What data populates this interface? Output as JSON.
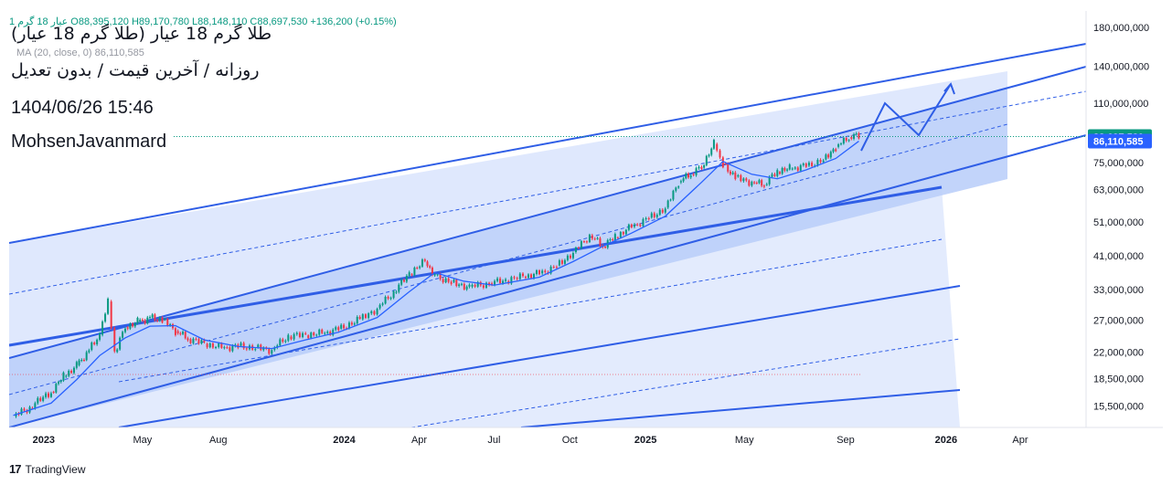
{
  "header": {
    "ohlc_text": "1  عیار 18 گرم   O88,395,120  H89,170,780  L88,148,110  C88,697,530  +136,200 (+0.15%)",
    "ma_text": "MA (20, close, 0)  86,110,585",
    "title_line1": "طلا گرم 18 عیار (طلا گرم 18 عیار)",
    "title_line2": "روزانه / آخرین قیمت / بدون تعدیل",
    "datetime": "1404/06/26 15:46",
    "author": "MohsenJavanmard"
  },
  "footer": {
    "brand": "TradingView",
    "logo": "17"
  },
  "colors": {
    "line": "#2f5ee6",
    "channel_fill": "#d7e2fc",
    "channel_fill_dark": "#a9c2f7",
    "up": "#089981",
    "down": "#f23645",
    "ma": "#2962ff",
    "last_price": "#089981",
    "ma_tag": "#2962ff"
  },
  "chart_data": {
    "type": "line",
    "title": "",
    "xlabel": "",
    "ylabel": "",
    "y_scale": "log",
    "ylim": [
      13500000,
      200000000
    ],
    "y_ticks": [
      "180,000,000",
      "140,000,000",
      "110,000,000",
      "75,000,000",
      "63,000,000",
      "51,000,000",
      "41,000,000",
      "33,000,000",
      "27,000,000",
      "22,000,000",
      "18,500,000",
      "15,500,000"
    ],
    "x_ticks": [
      {
        "label": "2023",
        "date": "2023-01-01",
        "bold": true
      },
      {
        "label": "May",
        "date": "2023-05-01",
        "bold": false
      },
      {
        "label": "Aug",
        "date": "2023-08-01",
        "bold": false
      },
      {
        "label": "2024",
        "date": "2024-01-01",
        "bold": true
      },
      {
        "label": "Apr",
        "date": "2024-04-01",
        "bold": false
      },
      {
        "label": "Jul",
        "date": "2024-07-01",
        "bold": false
      },
      {
        "label": "Oct",
        "date": "2024-10-01",
        "bold": false
      },
      {
        "label": "2025",
        "date": "2025-01-01",
        "bold": true
      },
      {
        "label": "May",
        "date": "2025-05-01",
        "bold": false
      },
      {
        "label": "Sep",
        "date": "2025-09-01",
        "bold": false
      },
      {
        "label": "2026",
        "date": "2026-01-01",
        "bold": true
      },
      {
        "label": "Apr",
        "date": "2026-04-01",
        "bold": false
      }
    ],
    "xlim": [
      "2022-11-20",
      "2026-06-20"
    ],
    "series": [
      {
        "name": "",
        "values": [
          [
            "2022-11-25",
            14500000
          ],
          [
            "2022-12-15",
            15300000
          ],
          [
            "2023-01-10",
            17000000
          ],
          [
            "2023-01-25",
            18800000
          ],
          [
            "2023-02-10",
            20200000
          ],
          [
            "2023-02-25",
            22300000
          ],
          [
            "2023-03-10",
            24600000
          ],
          [
            "2023-03-20",
            30500000
          ],
          [
            "2023-03-28",
            22000000
          ],
          [
            "2023-04-10",
            25800000
          ],
          [
            "2023-04-25",
            26800000
          ],
          [
            "2023-05-10",
            27500000
          ],
          [
            "2023-05-25",
            27200000
          ],
          [
            "2023-06-10",
            25200000
          ],
          [
            "2023-06-25",
            23900000
          ],
          [
            "2023-07-15",
            23200000
          ],
          [
            "2023-08-05",
            22600000
          ],
          [
            "2023-08-25",
            22900000
          ],
          [
            "2023-09-15",
            22700000
          ],
          [
            "2023-10-05",
            22300000
          ],
          [
            "2023-10-25",
            24300000
          ],
          [
            "2023-11-15",
            24500000
          ],
          [
            "2023-12-05",
            24800000
          ],
          [
            "2023-12-25",
            25600000
          ],
          [
            "2024-01-20",
            27200000
          ],
          [
            "2024-02-10",
            29200000
          ],
          [
            "2024-03-01",
            32300000
          ],
          [
            "2024-03-20",
            36400000
          ],
          [
            "2024-04-08",
            39500000
          ],
          [
            "2024-04-20",
            36200000
          ],
          [
            "2024-05-10",
            34600000
          ],
          [
            "2024-06-01",
            33600000
          ],
          [
            "2024-06-25",
            34300000
          ],
          [
            "2024-07-15",
            34800000
          ],
          [
            "2024-08-05",
            35800000
          ],
          [
            "2024-08-25",
            36600000
          ],
          [
            "2024-09-15",
            38500000
          ],
          [
            "2024-10-05",
            42000000
          ],
          [
            "2024-10-25",
            46800000
          ],
          [
            "2024-11-10",
            43500000
          ],
          [
            "2024-11-25",
            46200000
          ],
          [
            "2024-12-15",
            49500000
          ],
          [
            "2025-01-05",
            52500000
          ],
          [
            "2025-01-25",
            56000000
          ],
          [
            "2025-02-10",
            66000000
          ],
          [
            "2025-02-25",
            69500000
          ],
          [
            "2025-03-10",
            72500000
          ],
          [
            "2025-03-25",
            84500000
          ],
          [
            "2025-04-05",
            74500000
          ],
          [
            "2025-04-20",
            68500000
          ],
          [
            "2025-05-10",
            66000000
          ],
          [
            "2025-05-25",
            65000000
          ],
          [
            "2025-06-10",
            70500000
          ],
          [
            "2025-06-25",
            72000000
          ],
          [
            "2025-07-15",
            73500000
          ],
          [
            "2025-08-05",
            76500000
          ],
          [
            "2025-08-20",
            83000000
          ],
          [
            "2025-09-05",
            88400000
          ],
          [
            "2025-09-17",
            88697530
          ]
        ]
      },
      {
        "name": "MA (20, close, 0)",
        "values": [
          [
            "2022-11-25",
            14600000
          ],
          [
            "2023-01-10",
            15800000
          ],
          [
            "2023-02-10",
            18400000
          ],
          [
            "2023-03-10",
            21500000
          ],
          [
            "2023-04-10",
            24100000
          ],
          [
            "2023-05-10",
            26000000
          ],
          [
            "2023-06-10",
            26100000
          ],
          [
            "2023-07-15",
            23800000
          ],
          [
            "2023-08-25",
            22800000
          ],
          [
            "2023-10-05",
            22500000
          ],
          [
            "2023-11-15",
            23800000
          ],
          [
            "2023-12-25",
            25000000
          ],
          [
            "2024-02-10",
            27500000
          ],
          [
            "2024-03-20",
            32500000
          ],
          [
            "2024-04-20",
            36800000
          ],
          [
            "2024-05-25",
            34800000
          ],
          [
            "2024-07-01",
            33900000
          ],
          [
            "2024-08-25",
            35700000
          ],
          [
            "2024-10-05",
            39500000
          ],
          [
            "2024-11-10",
            43600000
          ],
          [
            "2024-12-15",
            47500000
          ],
          [
            "2025-01-25",
            53000000
          ],
          [
            "2025-03-10",
            66000000
          ],
          [
            "2025-04-05",
            75500000
          ],
          [
            "2025-05-10",
            69500000
          ],
          [
            "2025-06-10",
            67500000
          ],
          [
            "2025-07-15",
            71500000
          ],
          [
            "2025-08-20",
            77000000
          ],
          [
            "2025-09-17",
            86110585
          ]
        ]
      }
    ],
    "last_price": 88697530,
    "last_price_label": "88,697,530",
    "ma_value": 86110585,
    "ma_label": "86,110,585"
  }
}
